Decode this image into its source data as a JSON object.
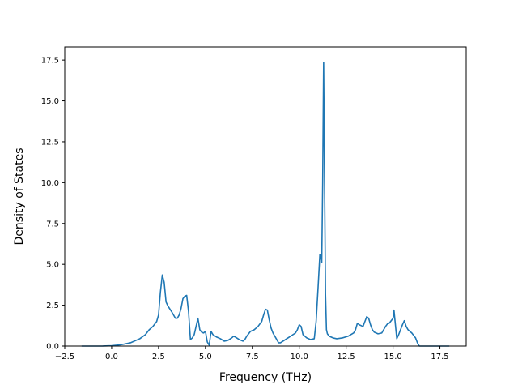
{
  "chart_data": {
    "type": "line",
    "title": "",
    "xlabel": "Frequency (THz)",
    "ylabel": "Density of States",
    "xlim": [
      -2.5,
      18.9
    ],
    "ylim": [
      0,
      18.3
    ],
    "xticks": [
      -2.5,
      0.0,
      2.5,
      5.0,
      7.5,
      10.0,
      12.5,
      15.0,
      17.5
    ],
    "xtick_labels": [
      "−2.5",
      "0.0",
      "2.5",
      "5.0",
      "7.5",
      "10.0",
      "12.5",
      "15.0",
      "17.5"
    ],
    "yticks": [
      0.0,
      2.5,
      5.0,
      7.5,
      10.0,
      12.5,
      15.0,
      17.5
    ],
    "ytick_labels": [
      "0.0",
      "2.5",
      "5.0",
      "7.5",
      "10.0",
      "12.5",
      "15.0",
      "17.5"
    ],
    "grid": false,
    "line_color": "#1f77b4",
    "series": [
      {
        "x": [
          -1.6,
          -0.5,
          0.0,
          0.5,
          1.0,
          1.5,
          1.8,
          2.0,
          2.2,
          2.4,
          2.5,
          2.6,
          2.7,
          2.8,
          2.9,
          3.0,
          3.2,
          3.4,
          3.5,
          3.6,
          3.7,
          3.8,
          3.9,
          4.0,
          4.1,
          4.2,
          4.3,
          4.4,
          4.5,
          4.6,
          4.7,
          4.8,
          4.9,
          5.0,
          5.1,
          5.2,
          5.3,
          5.4,
          5.6,
          5.8,
          6.0,
          6.2,
          6.4,
          6.5,
          6.6,
          6.8,
          7.0,
          7.1,
          7.2,
          7.4,
          7.6,
          7.8,
          8.0,
          8.1,
          8.2,
          8.3,
          8.4,
          8.5,
          8.6,
          8.7,
          8.8,
          8.9,
          9.0,
          9.2,
          9.4,
          9.6,
          9.8,
          9.9,
          10.0,
          10.1,
          10.2,
          10.4,
          10.6,
          10.8,
          10.9,
          11.0,
          11.1,
          11.2,
          11.25,
          11.3,
          11.35,
          11.4,
          11.45,
          11.5,
          11.6,
          11.8,
          12.0,
          12.3,
          12.6,
          12.9,
          13.0,
          13.1,
          13.2,
          13.4,
          13.5,
          13.6,
          13.7,
          13.8,
          13.9,
          14.0,
          14.2,
          14.4,
          14.6,
          14.7,
          14.8,
          15.0,
          15.05,
          15.1,
          15.2,
          15.3,
          15.4,
          15.5,
          15.6,
          15.7,
          15.8,
          16.0,
          16.2,
          16.3,
          16.4,
          17.0,
          18.0
        ],
        "y": [
          0.0,
          0.0,
          0.02,
          0.08,
          0.2,
          0.45,
          0.7,
          1.0,
          1.2,
          1.5,
          1.9,
          3.3,
          4.35,
          3.9,
          2.7,
          2.45,
          2.1,
          1.7,
          1.7,
          1.9,
          2.3,
          2.9,
          3.05,
          3.1,
          2.1,
          0.4,
          0.5,
          0.7,
          1.2,
          1.7,
          1.0,
          0.85,
          0.8,
          0.9,
          0.25,
          0.05,
          0.9,
          0.7,
          0.55,
          0.45,
          0.3,
          0.35,
          0.5,
          0.6,
          0.55,
          0.4,
          0.3,
          0.4,
          0.6,
          0.9,
          1.0,
          1.2,
          1.5,
          1.9,
          2.25,
          2.2,
          1.6,
          1.1,
          0.8,
          0.6,
          0.4,
          0.2,
          0.2,
          0.35,
          0.5,
          0.65,
          0.8,
          1.0,
          1.3,
          1.2,
          0.7,
          0.5,
          0.4,
          0.45,
          1.5,
          3.5,
          5.6,
          5.1,
          10.0,
          17.35,
          10.0,
          3.2,
          1.0,
          0.75,
          0.6,
          0.5,
          0.45,
          0.5,
          0.6,
          0.8,
          1.0,
          1.4,
          1.3,
          1.2,
          1.5,
          1.8,
          1.7,
          1.3,
          1.0,
          0.85,
          0.75,
          0.8,
          1.2,
          1.35,
          1.4,
          1.7,
          2.2,
          1.6,
          0.45,
          0.7,
          1.0,
          1.3,
          1.55,
          1.2,
          1.0,
          0.8,
          0.5,
          0.2,
          0.0,
          0.0,
          0.0
        ]
      }
    ]
  }
}
